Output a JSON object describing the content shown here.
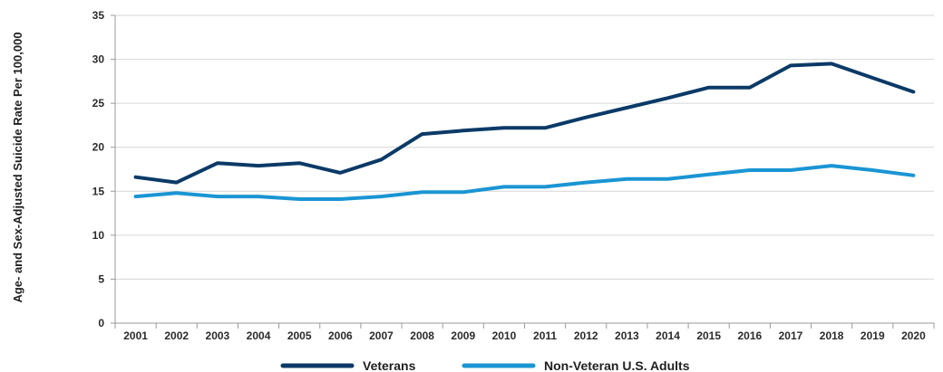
{
  "chart_data": {
    "type": "line",
    "title": "",
    "xlabel": "",
    "ylabel": "Age- and Sex-Adjusted Suicide Rate Per 100,000",
    "ylim": [
      0,
      35
    ],
    "yticks": [
      0,
      5,
      10,
      15,
      20,
      25,
      30,
      35
    ],
    "categories": [
      "2001",
      "2002",
      "2003",
      "2004",
      "2005",
      "2006",
      "2007",
      "2008",
      "2009",
      "2010",
      "2011",
      "2012",
      "2013",
      "2014",
      "2015",
      "2016",
      "2017",
      "2018",
      "2019",
      "2020"
    ],
    "grid": "horizontal",
    "legend_position": "bottom",
    "series": [
      {
        "name": "Veterans",
        "color": "#0b3a67",
        "values": [
          16.6,
          16.0,
          18.2,
          17.9,
          18.2,
          17.1,
          18.6,
          21.5,
          21.9,
          22.2,
          22.2,
          23.4,
          24.5,
          25.6,
          26.8,
          26.8,
          29.3,
          29.5,
          27.9,
          26.3
        ]
      },
      {
        "name": "Non-Veteran U.S. Adults",
        "color": "#1a95d3",
        "values": [
          14.4,
          14.8,
          14.4,
          14.4,
          14.1,
          14.1,
          14.4,
          14.9,
          14.9,
          15.5,
          15.5,
          16.0,
          16.4,
          16.4,
          16.9,
          17.4,
          17.4,
          17.9,
          17.4,
          16.8
        ]
      }
    ]
  }
}
